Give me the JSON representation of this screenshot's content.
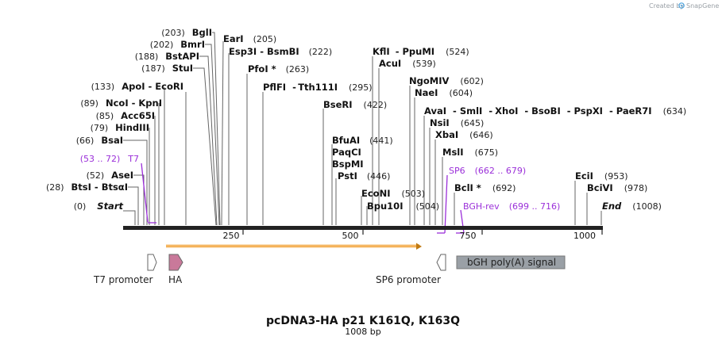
{
  "credit": {
    "prefix": "Created by",
    "brand": "SnapGene"
  },
  "title": "pcDNA3-HA p21 K161Q, K163Q",
  "length_label": "1008 bp",
  "colors": {
    "primer": "#9b30d9",
    "orf": "#f2a33a",
    "ha": "#c9799a",
    "polya": "#9aa0a6",
    "line": "#666666"
  },
  "ruler": [
    "250",
    "500",
    "750",
    "1000"
  ],
  "sites": [
    {
      "pos": "(0)",
      "name": "Start",
      "italic": true
    },
    {
      "pos": "(28)",
      "name": "BtsI",
      "sep": "-",
      "name2": "BtsαI"
    },
    {
      "pos": "(52)",
      "name": "AseI"
    },
    {
      "pos": "(66)",
      "name": "BsaI"
    },
    {
      "pos": "(79)",
      "name": "HindIII"
    },
    {
      "pos": "(85)",
      "name": "Acc65I"
    },
    {
      "pos": "(89)",
      "name": "NcoI",
      "sep": "-",
      "name2": "KpnI"
    },
    {
      "pos": "(133)",
      "name": "ApoI",
      "sep": "-",
      "name2": "EcoRI"
    },
    {
      "pos": "(187)",
      "name": "StuI"
    },
    {
      "pos": "(188)",
      "name": "BstAPI"
    },
    {
      "pos": "(202)",
      "name": "BmrI"
    },
    {
      "pos": "(203)",
      "name": "BglI"
    },
    {
      "name": "EarI",
      "pos": "(205)"
    },
    {
      "name": "Esp3I",
      "sep": "-",
      "name2": "BsmBI",
      "pos": "(222)"
    },
    {
      "name": "PfoI *",
      "pos": "(263)"
    },
    {
      "name": "PflFI",
      "sep": "-",
      "name2": "Tth111I",
      "pos": "(295)"
    },
    {
      "name": "BseRI",
      "pos": "(422)"
    },
    {
      "name": "BfuAI",
      "pos": "(441)"
    },
    {
      "name": "PaqCI"
    },
    {
      "name": "BspMI"
    },
    {
      "name": "PstI",
      "pos": "(446)"
    },
    {
      "name": "EcoNI",
      "pos": "(503)"
    },
    {
      "name": "Bpu10I",
      "pos": "(504)"
    },
    {
      "name": "KflI",
      "sep": "-",
      "name2": "PpuMI",
      "pos": "(524)"
    },
    {
      "name": "AcuI",
      "pos": "(539)"
    },
    {
      "name": "NgoMIV",
      "pos": "(602)"
    },
    {
      "name": "NaeI",
      "pos": "(604)"
    },
    {
      "name": "AvaI",
      "sep": "-",
      "name2": "SmlI",
      "sep2": "-",
      "name3": "XhoI",
      "sep3": "-",
      "name4": "BsoBI",
      "sep4": "-",
      "name5": "PspXI",
      "sep5": "-",
      "name6": "PaeR7I",
      "pos": "(634)"
    },
    {
      "name": "NsiI",
      "pos": "(645)"
    },
    {
      "name": "XbaI",
      "pos": "(646)"
    },
    {
      "name": "MslI",
      "pos": "(675)"
    },
    {
      "name": "BclI *",
      "pos": "(692)"
    },
    {
      "name": "EciI",
      "pos": "(953)"
    },
    {
      "name": "BciVI",
      "pos": "(978)"
    },
    {
      "name": "End",
      "italic": true,
      "pos": "(1008)"
    }
  ],
  "primers": [
    {
      "name": "T7",
      "range": "(53 .. 72)"
    },
    {
      "name": "SP6",
      "range": "(662 .. 679)"
    },
    {
      "name": "BGH-rev",
      "range": "(699 .. 716)"
    }
  ],
  "features": {
    "t7_promoter": "T7 promoter",
    "ha": "HA",
    "sp6_promoter": "SP6 promoter",
    "polya": "bGH poly(A) signal"
  }
}
